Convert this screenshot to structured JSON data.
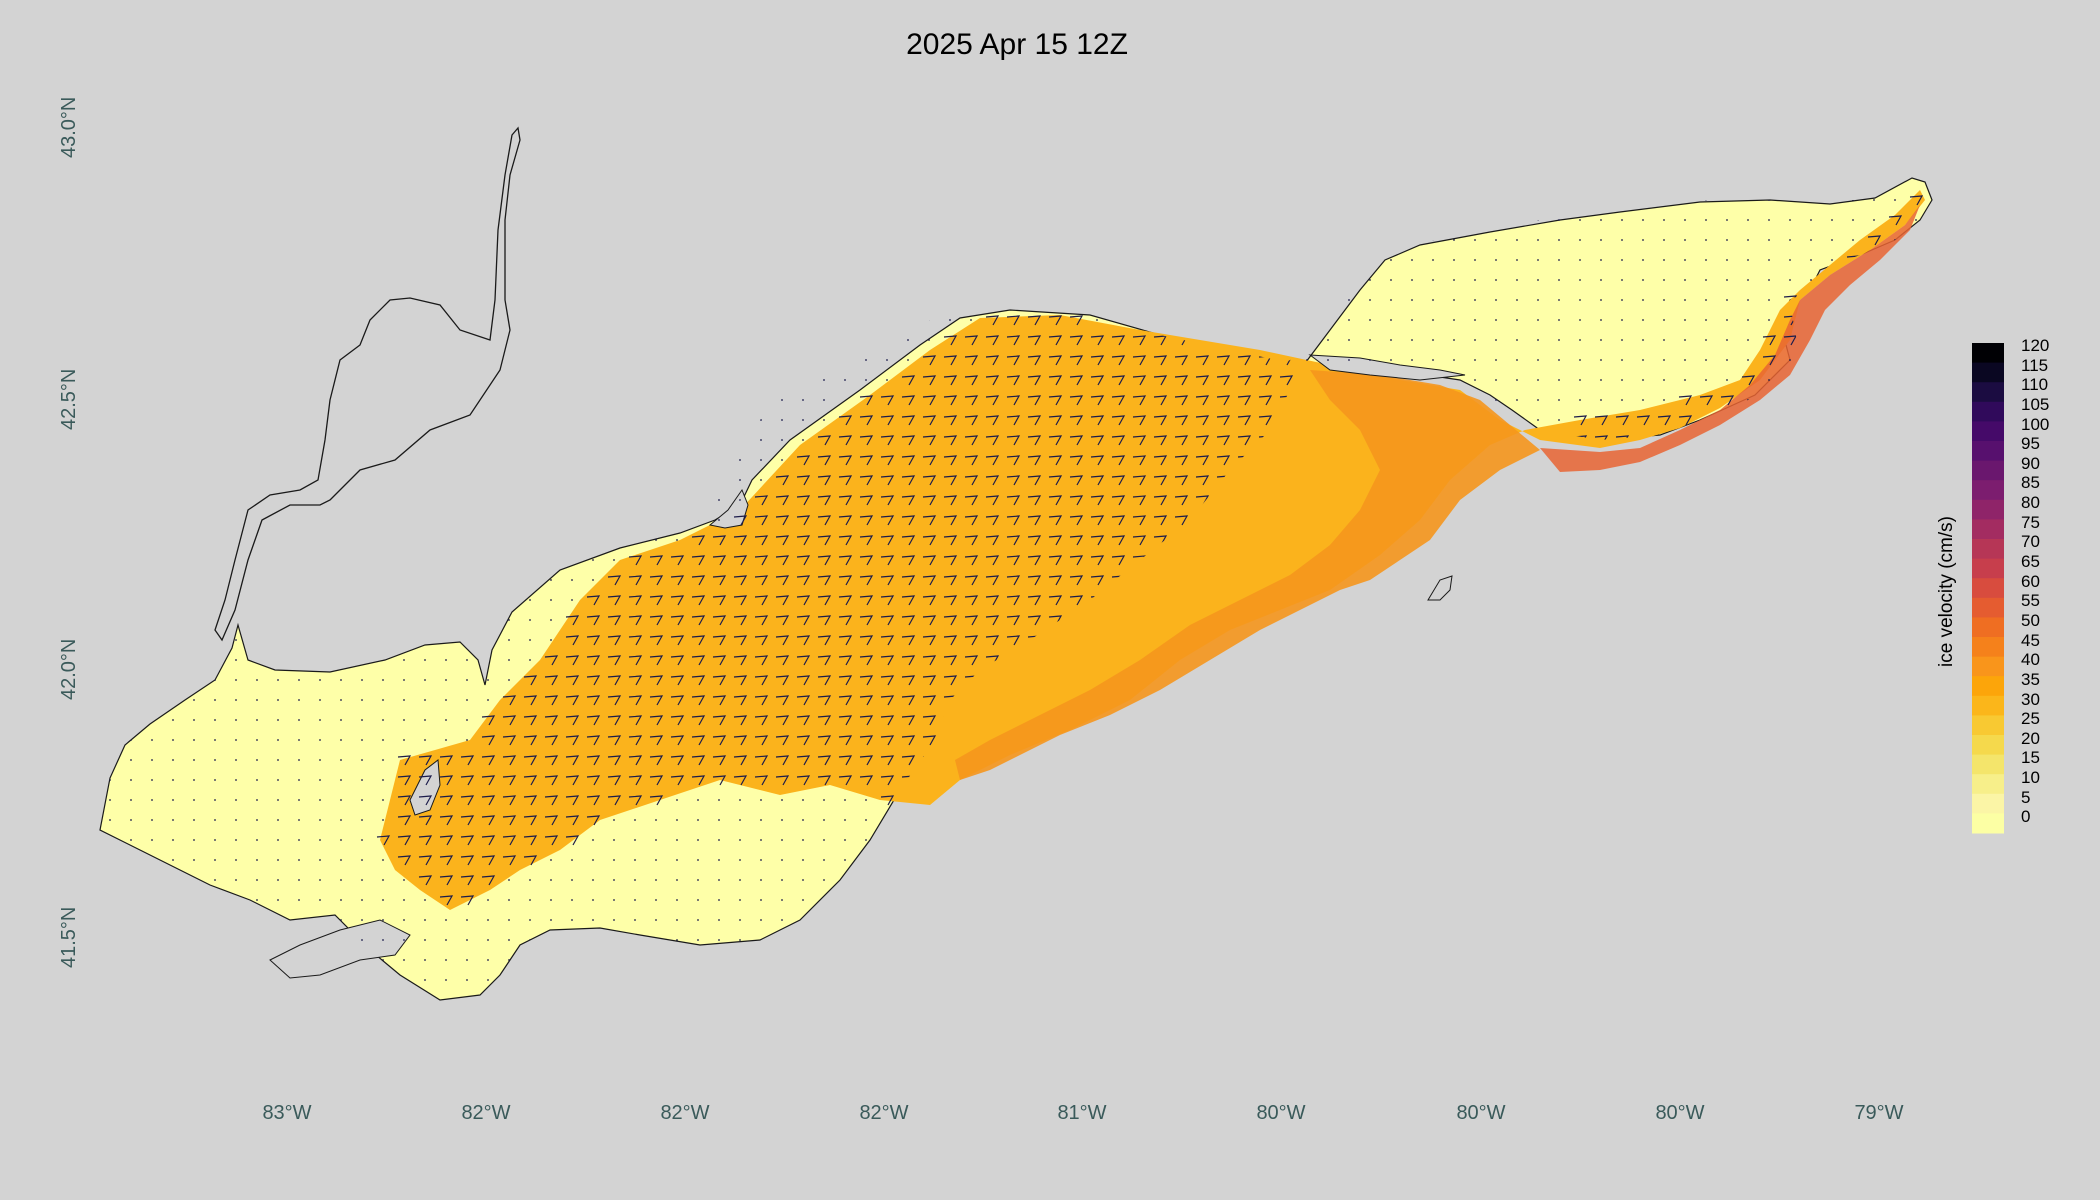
{
  "title": "2025 Apr 15 12Z",
  "axes": {
    "lat_labels": [
      "43.0°N",
      "42.5°N",
      "42.0°N",
      "41.5°N"
    ],
    "lon_labels": [
      "83°W",
      "82°W",
      "82°W",
      "82°W",
      "81°W",
      "80°W",
      "80°W",
      "80°W",
      "79°W"
    ]
  },
  "colorbar": {
    "title": "ice velocity (cm/s)",
    "ticks": [
      "120",
      "115",
      "110",
      "105",
      "100",
      "95",
      "90",
      "85",
      "80",
      "75",
      "70",
      "65",
      "60",
      "55",
      "50",
      "45",
      "40",
      "35",
      "30",
      "25",
      "20",
      "15",
      "10",
      "5",
      "0"
    ],
    "colors": [
      "#000004",
      "#0a0722",
      "#1b0c41",
      "#300a5b",
      "#450a69",
      "#57106e",
      "#6a176e",
      "#7c1d6f",
      "#8f2469",
      "#a32c61",
      "#b63656",
      "#c73e4c",
      "#d84c3e",
      "#e55c30",
      "#ef6e22",
      "#f5811b",
      "#f9951b",
      "#fca50a",
      "#fbb61a",
      "#f8c932",
      "#f5d94c",
      "#f4e56b",
      "#f7ef8a",
      "#fbf5a6",
      "#fcffa4"
    ]
  },
  "colors": {
    "background": "#d3d3d3",
    "ice_low": "#feffa8",
    "ice_mid": "#fbb31c",
    "ice_high": "#f5901e",
    "ice_peak": "#e86432",
    "arrow": "#1c1c4c",
    "coast": "#1a1a1a"
  }
}
